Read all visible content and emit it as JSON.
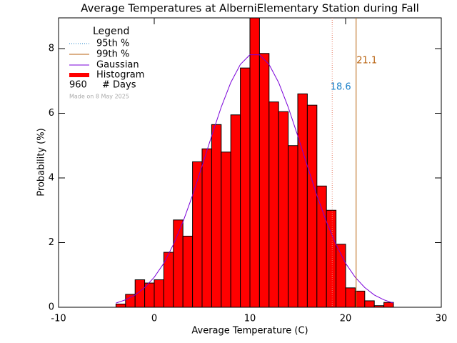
{
  "chart_data": {
    "type": "histogram",
    "title": "Average Temperatures at AlberniElementary Station during Fall",
    "xlabel": "Average Temperature (C)",
    "ylabel": "Probability (%)",
    "name": "Histogram",
    "color": "#ff0000",
    "bins": [
      -4,
      -3,
      -2,
      -1,
      0,
      1,
      2,
      3,
      4,
      5,
      6,
      7,
      8,
      9,
      10,
      11,
      12,
      13,
      14,
      15,
      16,
      17,
      18,
      19,
      20,
      21,
      22,
      23,
      24,
      25
    ],
    "values": [
      0.1,
      0.4,
      0.85,
      0.75,
      0.85,
      1.7,
      2.7,
      2.2,
      4.5,
      4.9,
      5.65,
      4.8,
      5.95,
      7.4,
      9.0,
      7.85,
      6.35,
      6.05,
      5.0,
      6.6,
      6.25,
      3.75,
      3.0,
      1.95,
      0.6,
      0.5,
      0.2,
      0.05,
      0.15
    ],
    "xlim": [
      -10,
      30
    ],
    "ylim": [
      0,
      8.95
    ],
    "xticks": [
      -10,
      0,
      10,
      20,
      30
    ],
    "yticks": [
      0,
      2,
      4,
      6,
      8
    ],
    "gaussian": {
      "name": "Gaussian",
      "color": "#7a00d9",
      "x": [
        -4,
        -3,
        -2,
        -1,
        0,
        1,
        2,
        3,
        4,
        5,
        6,
        7,
        8,
        9,
        10,
        11,
        12,
        13,
        14,
        15,
        16,
        17,
        18,
        19,
        20,
        21,
        22,
        23,
        24,
        25
      ],
      "values": [
        0.13,
        0.23,
        0.38,
        0.61,
        0.93,
        1.36,
        1.94,
        2.64,
        3.46,
        4.37,
        5.3,
        6.19,
        6.95,
        7.51,
        7.81,
        7.81,
        7.51,
        6.95,
        6.19,
        5.3,
        4.37,
        3.46,
        2.64,
        1.94,
        1.36,
        0.93,
        0.61,
        0.38,
        0.23,
        0.13
      ]
    },
    "percentiles": [
      {
        "name": "95th %",
        "value": 18.6,
        "color": "#1a7fc8",
        "line_color": "#e8806a",
        "dash": true
      },
      {
        "name": "99th %",
        "value": 21.1,
        "color": "#b8620f",
        "line_color": "#b8620f",
        "dash": false
      }
    ],
    "legend_title": "Legend",
    "days": {
      "value": 960,
      "label": "# Days"
    },
    "note": "Made on 8 May 2025"
  }
}
